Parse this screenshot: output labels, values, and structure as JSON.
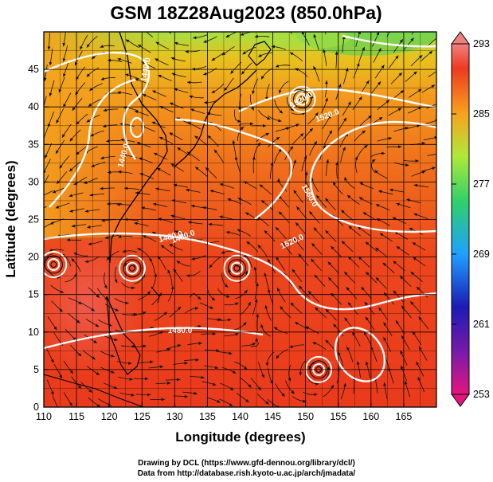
{
  "title": "GSM 18Z28Aug2023 (850.0hPa)",
  "map": {
    "xlabel": "Longitude (degrees)",
    "ylabel": "Latitude  (degrees)",
    "lon_ticks": [
      "110",
      "115",
      "120",
      "125",
      "130",
      "135",
      "140",
      "145",
      "150",
      "155",
      "160",
      "165"
    ],
    "lat_ticks": [
      "0",
      "5",
      "10",
      "15",
      "20",
      "25",
      "30",
      "35",
      "40",
      "45"
    ],
    "lon_range": [
      110,
      170
    ],
    "lat_range": [
      0,
      50
    ],
    "grid": true,
    "contour_labels": [
      "1440.0",
      "1480.0",
      "1520.0",
      "1560.0",
      "1480.0",
      "1520.0",
      "1520.0",
      "1480.0",
      "1440.0"
    ],
    "vortex_centers": [
      {
        "lon": 123.5,
        "lat": 18.5
      },
      {
        "lon": 139.5,
        "lat": 18.5
      },
      {
        "lon": 149.5,
        "lat": 41.0
      },
      {
        "lon": 152.0,
        "lat": 5.0
      },
      {
        "lon": 111.5,
        "lat": 19.0
      }
    ]
  },
  "colorbar": {
    "ticks": [
      "293",
      "285",
      "277",
      "269",
      "261",
      "253"
    ],
    "range": [
      253,
      293
    ],
    "colors": [
      "#e4157f",
      "#1b1bb5",
      "#1fa0ff",
      "#2fd06a",
      "#b0e83a",
      "#f7a31e",
      "#ee3a1f",
      "#f08080"
    ]
  },
  "credits": {
    "line1": "Drawing by DCL (https://www.gfd-dennou.org/library/dcl/)",
    "line2": "Data from http://database.rish.kyoto-u.ac.jp/arch/jmadata/"
  }
}
